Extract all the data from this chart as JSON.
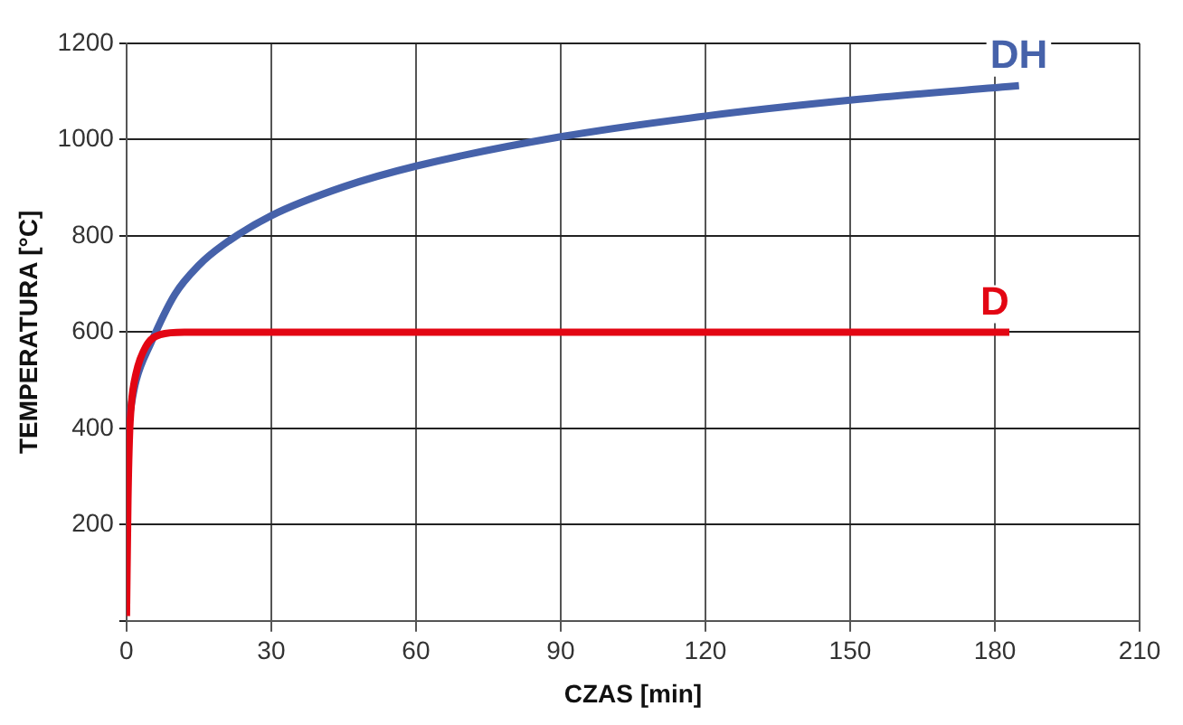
{
  "chart_data": {
    "type": "line",
    "xlabel": "CZAS [min]",
    "ylabel": "TEMPERATURA [°C]",
    "xlim": [
      0,
      210
    ],
    "xticks": [
      0,
      30,
      60,
      90,
      120,
      150,
      180,
      210
    ],
    "ylim": [
      0,
      1200
    ],
    "yticks": [
      {
        "value": 0,
        "label": null
      },
      200,
      400,
      600,
      800,
      1000,
      1200
    ],
    "grid": true,
    "legend": false,
    "marker": "none",
    "line_style": "solid",
    "series": [
      {
        "name": "DH",
        "color": "#4662aa",
        "x": [
          0,
          1,
          2,
          5,
          10,
          15,
          20,
          30,
          45,
          60,
          90,
          120,
          150,
          185
        ],
        "values": [
          380,
          450,
          500,
          576,
          678,
          739,
          781,
          842,
          902,
          945,
          1006,
          1049,
          1082,
          1112
        ]
      },
      {
        "name": "D",
        "color": "#e30613",
        "x": [
          0,
          0.3,
          0.6,
          1,
          2,
          4,
          7,
          12,
          183
        ],
        "values": [
          10,
          250,
          380,
          450,
          515,
          570,
          595,
          600,
          600
        ]
      }
    ]
  }
}
